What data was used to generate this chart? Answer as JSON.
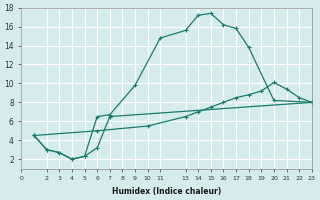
{
  "xlabel": "Humidex (Indice chaleur)",
  "background_color": "#d6ecec",
  "grid_color": "#ffffff",
  "line_color": "#1a7a6e",
  "lines": [
    {
      "x": [
        1,
        2,
        3,
        4,
        5,
        6,
        7,
        9,
        11,
        13,
        14,
        15,
        16,
        17,
        18,
        20,
        23
      ],
      "y": [
        4.5,
        3.0,
        2.7,
        2.0,
        2.3,
        6.5,
        6.7,
        9.8,
        14.8,
        15.6,
        17.2,
        17.4,
        16.2,
        15.8,
        13.8,
        8.2,
        8.0
      ]
    },
    {
      "x": [
        1,
        2,
        3,
        4,
        5,
        6,
        7,
        23
      ],
      "y": [
        4.5,
        3.0,
        2.7,
        2.0,
        2.3,
        3.2,
        6.5,
        8.0
      ]
    },
    {
      "x": [
        1,
        6,
        10,
        13,
        14,
        15,
        16,
        17,
        18,
        19,
        20,
        21,
        22,
        23
      ],
      "y": [
        4.5,
        5.0,
        5.5,
        6.5,
        7.0,
        7.5,
        8.0,
        8.5,
        8.8,
        9.2,
        10.1,
        9.4,
        8.5,
        8.0
      ]
    }
  ],
  "xlim": [
    0,
    23
  ],
  "ylim": [
    1,
    18
  ],
  "yticks": [
    2,
    4,
    6,
    8,
    10,
    12,
    14,
    16,
    18
  ],
  "xticks": [
    0,
    2,
    3,
    4,
    5,
    6,
    7,
    8,
    9,
    10,
    11,
    13,
    14,
    15,
    16,
    17,
    18,
    19,
    20,
    21,
    22,
    23
  ],
  "xtick_labels": [
    "0",
    "2",
    "3",
    "4",
    "5",
    "6",
    "7",
    "8",
    "9",
    "10",
    "11",
    "13",
    "14",
    "15",
    "16",
    "17",
    "18",
    "19",
    "20",
    "21",
    "22",
    "23"
  ]
}
